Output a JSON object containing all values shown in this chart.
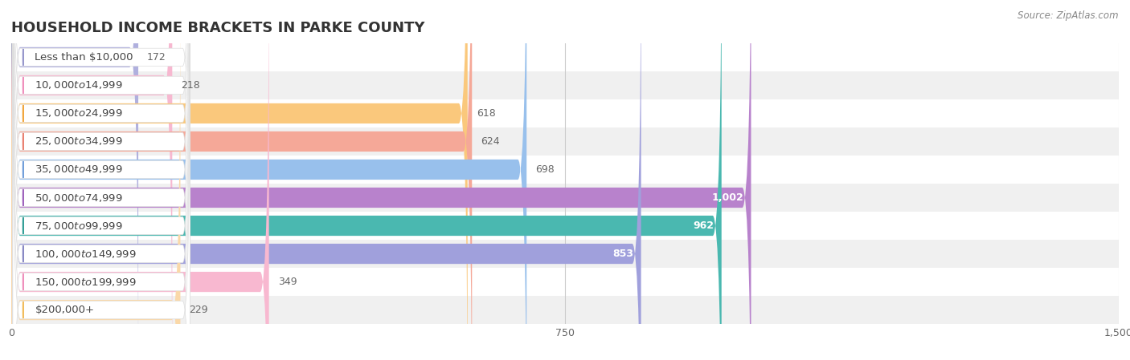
{
  "title": "HOUSEHOLD INCOME BRACKETS IN PARKE COUNTY",
  "source": "Source: ZipAtlas.com",
  "categories": [
    "Less than $10,000",
    "$10,000 to $14,999",
    "$15,000 to $24,999",
    "$25,000 to $34,999",
    "$35,000 to $49,999",
    "$50,000 to $74,999",
    "$75,000 to $99,999",
    "$100,000 to $149,999",
    "$150,000 to $199,999",
    "$200,000+"
  ],
  "values": [
    172,
    218,
    618,
    624,
    698,
    1002,
    962,
    853,
    349,
    229
  ],
  "bar_colors": [
    "#b0b0de",
    "#f7b8d0",
    "#fac87c",
    "#f5a898",
    "#98c0ec",
    "#b882cc",
    "#4ab8b0",
    "#a0a0dc",
    "#f8b8d0",
    "#fad8a8"
  ],
  "dot_colors": [
    "#9090c8",
    "#ee88b8",
    "#f0a030",
    "#e87868",
    "#6898d8",
    "#9858b8",
    "#259890",
    "#8080c0",
    "#ee88b8",
    "#f0b850"
  ],
  "row_bg_colors": [
    "#ffffff",
    "#f0f0f0"
  ],
  "xlim": [
    0,
    1500
  ],
  "xticks": [
    0,
    750,
    1500
  ],
  "bar_height": 0.72,
  "value_threshold": 750,
  "title_fontsize": 13,
  "label_fontsize": 9.5,
  "value_fontsize": 9
}
